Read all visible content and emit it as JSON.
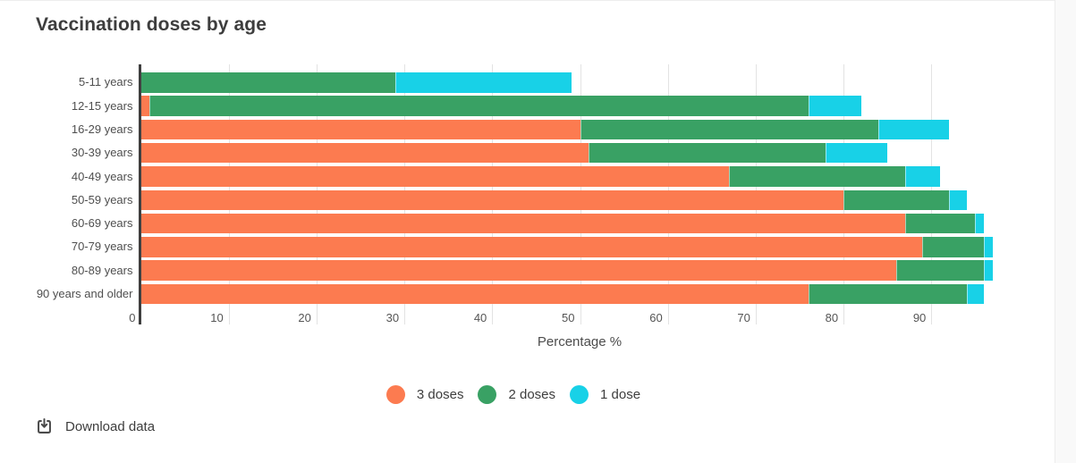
{
  "title": "Vaccination doses by age",
  "download": {
    "label": "Download data"
  },
  "colors": {
    "orange": "#fc7b50",
    "green": "#39a164",
    "cyan": "#18d1e7",
    "axis": "#3f3f3f",
    "gridline": "#e3e3e3",
    "text": "#4f4f4f"
  },
  "chart_data": {
    "type": "bar",
    "orientation": "horizontal",
    "stacked": true,
    "title": "Vaccination doses by age",
    "xlabel": "Percentage %",
    "categories": [
      "5-11 years",
      "12-15 years",
      "16-29 years",
      "30-39 years",
      "40-49 years",
      "50-59 years",
      "60-69 years",
      "70-79 years",
      "80-89 years",
      "90 years and older"
    ],
    "series": [
      {
        "name": "3 doses",
        "color": "#fc7b50",
        "values": [
          0,
          1,
          50,
          51,
          67,
          80,
          87,
          89,
          86,
          76
        ]
      },
      {
        "name": "2 doses",
        "color": "#39a164",
        "values": [
          29,
          75,
          34,
          27,
          20,
          12,
          8,
          7,
          10,
          18
        ]
      },
      {
        "name": "1 dose",
        "color": "#18d1e7",
        "values": [
          20,
          6,
          8,
          7,
          4,
          2,
          1,
          1,
          1,
          2
        ]
      }
    ],
    "xlim": [
      0,
      100
    ],
    "xticks": [
      0,
      10,
      20,
      30,
      40,
      50,
      60,
      70,
      80,
      90
    ],
    "grid": true,
    "legend_position": "bottom"
  }
}
